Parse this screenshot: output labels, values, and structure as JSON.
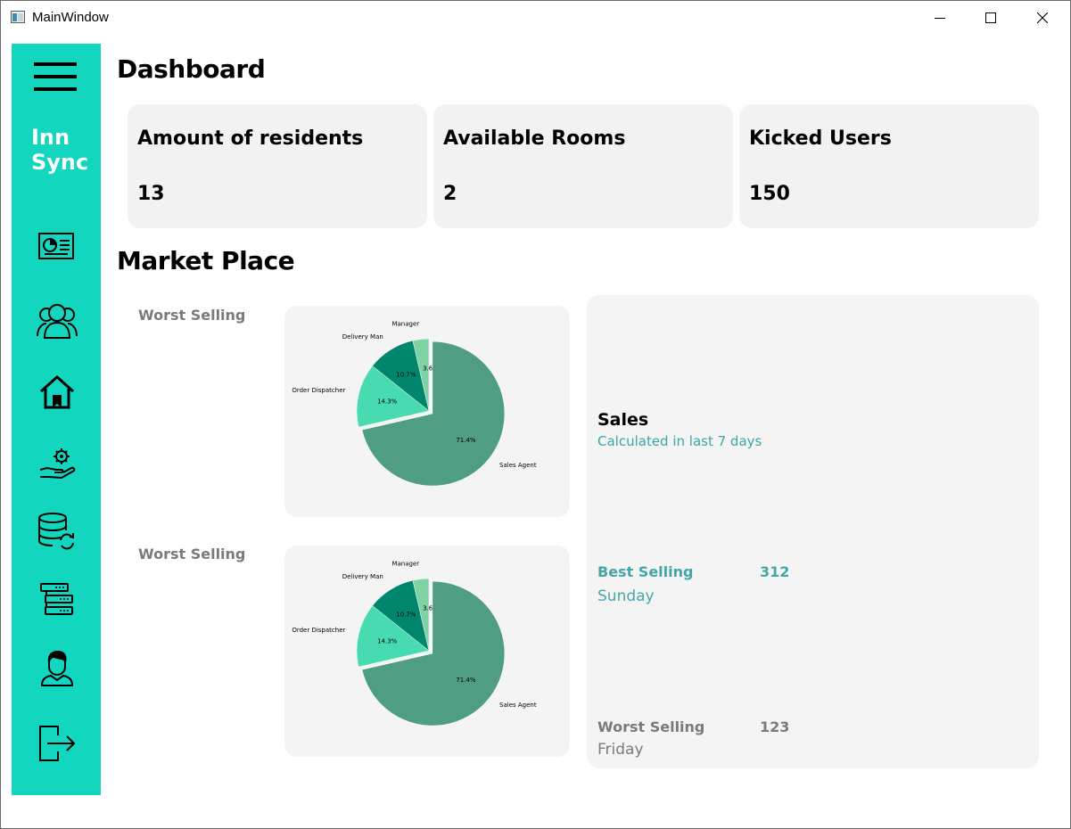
{
  "window": {
    "title": "MainWindow"
  },
  "sidebar": {
    "brand_line1": "Inn",
    "brand_line2": "Sync",
    "bg_color": "#12d6bd",
    "items": [
      {
        "icon": "menu-icon"
      },
      {
        "icon": "dashboard-report-icon"
      },
      {
        "icon": "users-group-icon"
      },
      {
        "icon": "home-icon"
      },
      {
        "icon": "service-gear-hand-icon"
      },
      {
        "icon": "database-refresh-icon"
      },
      {
        "icon": "server-list-icon"
      },
      {
        "icon": "user-profile-icon"
      },
      {
        "icon": "logout-icon"
      }
    ]
  },
  "dashboard": {
    "heading": "Dashboard",
    "cards": [
      {
        "title": "Amount of residents",
        "value": "13"
      },
      {
        "title": "Available Rooms",
        "value": "2"
      },
      {
        "title": "Kicked Users",
        "value": "150"
      }
    ]
  },
  "market": {
    "heading": "Market Place",
    "left_labels": [
      "Worst Selling",
      "Worst Selling"
    ],
    "sales": {
      "title": "Sales",
      "subtitle": "Calculated in last 7 days",
      "best_label": "Best Selling",
      "best_value": "312",
      "best_day": "Sunday",
      "worst_label": "Worst Selling",
      "worst_value": "123",
      "worst_day": "Friday"
    }
  },
  "chart_data": [
    {
      "type": "pie",
      "labels": [
        "Manager",
        "Delivery Man",
        "Order Dispatcher",
        "Sales Agent"
      ],
      "values": [
        3.6,
        10.7,
        14.3,
        71.4
      ],
      "value_labels": [
        "3.6%",
        "10.7%",
        "14.3%",
        "71.4%"
      ],
      "colors": [
        "#7dd3a4",
        "#00866d",
        "#48dbb0",
        "#4f9e83"
      ],
      "exploded": "Sales Agent"
    },
    {
      "type": "pie",
      "labels": [
        "Manager",
        "Delivery Man",
        "Order Dispatcher",
        "Sales Agent"
      ],
      "values": [
        3.6,
        10.7,
        14.3,
        71.4
      ],
      "value_labels": [
        "3.6%",
        "10.7%",
        "14.3%",
        "71.4%"
      ],
      "colors": [
        "#7dd3a4",
        "#00866d",
        "#48dbb0",
        "#4f9e83"
      ],
      "exploded": "Sales Agent"
    }
  ]
}
